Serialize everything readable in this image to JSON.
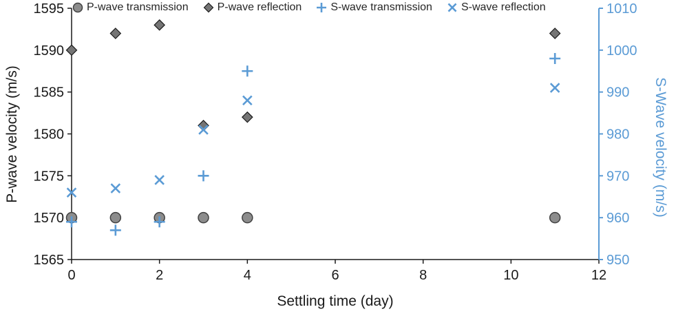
{
  "chart_data": {
    "type": "scatter",
    "title": "",
    "xlabel": "Settling time (day)",
    "ylabel_left": "P-wave velocity (m/s)",
    "ylabel_right": "S-Wave velocity (m/s)",
    "xlim": [
      0,
      12
    ],
    "x_ticks": [
      0,
      2,
      4,
      6,
      8,
      10,
      12
    ],
    "ylim_left": [
      1565,
      1595
    ],
    "y_ticks_left": [
      1565,
      1570,
      1575,
      1580,
      1585,
      1590,
      1595
    ],
    "ylim_right": [
      950,
      1010
    ],
    "y_ticks_right": [
      950,
      960,
      970,
      980,
      990,
      1000,
      1010
    ],
    "grid": false,
    "legend_position": "top",
    "axis_color": "#1a1a1a",
    "right_axis_color": "#5B9BD5",
    "series": [
      {
        "name": "P-wave transmission",
        "axis": "left",
        "marker": "circle",
        "color": "#8C8C8C",
        "x": [
          0,
          1,
          2,
          3,
          4,
          11
        ],
        "y": [
          1570,
          1570,
          1570,
          1570,
          1570,
          1570
        ]
      },
      {
        "name": "P-wave reflection",
        "axis": "left",
        "marker": "diamond",
        "color": "#757575",
        "x": [
          0,
          1,
          2,
          3,
          4,
          11
        ],
        "y": [
          1590,
          1592,
          1593,
          1581,
          1582,
          1592
        ]
      },
      {
        "name": "S-wave transmission",
        "axis": "right",
        "marker": "plus",
        "color": "#5B9BD5",
        "x": [
          0,
          1,
          2,
          3,
          4,
          11
        ],
        "y": [
          959,
          957,
          959,
          970,
          995,
          998
        ]
      },
      {
        "name": "S-wave reflection",
        "axis": "right",
        "marker": "x",
        "color": "#5B9BD5",
        "x": [
          0,
          1,
          2,
          3,
          4,
          11
        ],
        "y": [
          966,
          967,
          969,
          981,
          988,
          991
        ]
      }
    ]
  }
}
